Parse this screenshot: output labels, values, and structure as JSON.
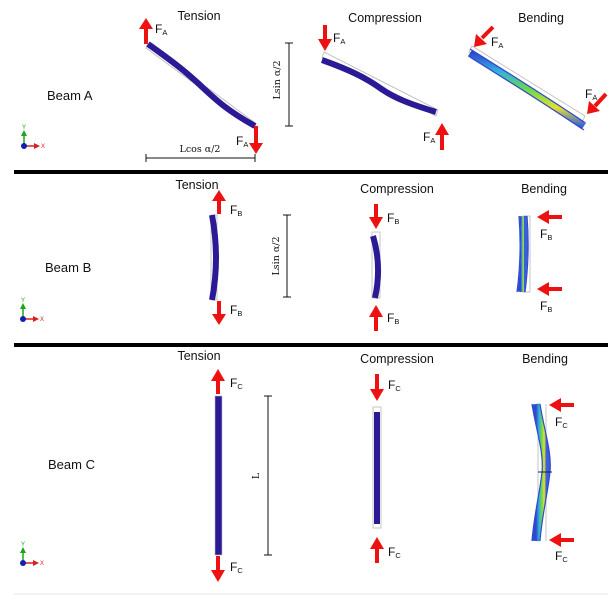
{
  "rows": [
    {
      "beam_label": "Beam A",
      "headers": [
        "Tension",
        "Compression",
        "Bending"
      ],
      "force_symbol": "F",
      "force_sub": "A",
      "dims": [
        "Lsin α/2",
        "Lcos α/2"
      ]
    },
    {
      "beam_label": "Beam B",
      "headers": [
        "Tension",
        "Compression",
        "Bending"
      ],
      "force_symbol": "F",
      "force_sub": "B",
      "dims": [
        "Lsin α/2"
      ]
    },
    {
      "beam_label": "Beam C",
      "headers": [
        "Tension",
        "Compression",
        "Bending"
      ],
      "force_symbol": "F",
      "force_sub": "C",
      "dims": [
        "L"
      ]
    }
  ],
  "axes": {
    "y": "Y",
    "x": "X"
  },
  "colors": {
    "arrow": "#ee1111",
    "beam": "#2a1a96",
    "separator": "#000000",
    "axis_y": "#1aa51a",
    "axis_x": "#d82020",
    "axis_origin": "#1020b0"
  }
}
